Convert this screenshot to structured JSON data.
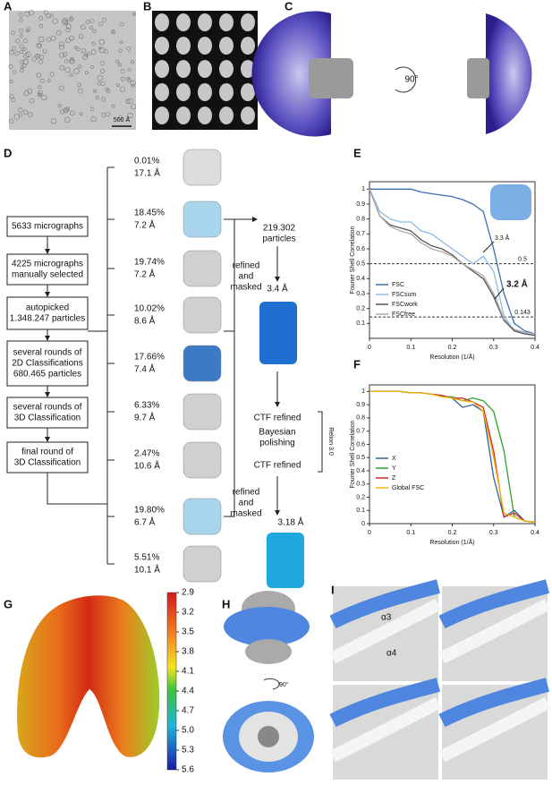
{
  "figure": {
    "panel_labels": [
      "A",
      "B",
      "C",
      "D",
      "E",
      "F",
      "G",
      "H",
      "I"
    ],
    "scale_bar": "500 Å",
    "rotation_c": "90°",
    "rotation_h": "90°",
    "steps": [
      [
        "5633 micrographs"
      ],
      [
        "4225 micrographs",
        "manually selected"
      ],
      [
        "autopicked",
        "1.348.247 particles"
      ],
      [
        "several rounds of",
        "2D Classifications",
        "680.465 particles"
      ],
      [
        "several rounds of",
        "3D Classification"
      ],
      [
        "final round of",
        "3D Classification"
      ]
    ],
    "classes": [
      {
        "percent": "0.01%",
        "resolution": "17.1 Å"
      },
      {
        "percent": "18.45%",
        "resolution": "7.2 Å"
      },
      {
        "percent": "19.74%",
        "resolution": "7.2 Å"
      },
      {
        "percent": "10.02%",
        "resolution": "8.6 Å"
      },
      {
        "percent": "17.66%",
        "resolution": "7.4 Å"
      },
      {
        "percent": "6.33%",
        "resolution": "9.7 Å"
      },
      {
        "percent": "2.47%",
        "resolution": "10.6 Å"
      },
      {
        "percent": "19.80%",
        "resolution": "6.7 Å"
      },
      {
        "percent": "5.51%",
        "resolution": "10.1 Å"
      }
    ],
    "particles": [
      "219.302",
      "particles"
    ],
    "refine_1": [
      "refined",
      "and",
      "masked"
    ],
    "resolution_1": "3.4 Å",
    "ctf_1": "CTF refined",
    "polishing": [
      "Bayesian",
      "polishing"
    ],
    "ctf_2": "CTF refined",
    "software": "Relion 3.0",
    "refine_2": [
      "refined",
      "and",
      "masked"
    ],
    "resolution_2": "3.18 Å",
    "colorbar": {
      "ticks": [
        2.9,
        3.2,
        3.5,
        3.8,
        4.1,
        4.4,
        4.7,
        {
          "value": 5.0,
          "label": "5.0"
        },
        5.3,
        5.6
      ]
    },
    "helices": [
      "α3",
      "α4"
    ]
  },
  "chart_data": [
    {
      "type": "line",
      "ylabel": "Fourier Shell Correlation",
      "xlabel": "Resolution (1/Å)",
      "x": [
        0,
        0.025,
        0.05,
        0.075,
        0.1,
        0.125,
        0.15,
        0.175,
        0.2,
        0.225,
        0.25,
        0.275,
        0.3,
        0.325,
        0.35,
        0.375,
        0.4
      ],
      "xlim": [
        0,
        0.4
      ],
      "ylim": [
        0,
        1.05
      ],
      "xticks": [
        0,
        0.1,
        0.2,
        0.3,
        0.4
      ],
      "yticks": [
        0.1,
        0.2,
        0.3,
        0.4,
        0.5,
        0.6,
        0.7,
        0.8,
        0.9,
        1
      ],
      "thresholds": [
        {
          "value": 0.5,
          "label": "0.5"
        },
        {
          "value": 0.143,
          "label": "0.143"
        }
      ],
      "annotations": [
        "3.3 Å",
        "3.2 Å"
      ],
      "series": [
        {
          "name": "FSC",
          "color": "#3b6fb6",
          "values": [
            1,
            1,
            1,
            1,
            1,
            0.98,
            0.97,
            0.96,
            0.95,
            0.93,
            0.9,
            0.85,
            0.6,
            0.3,
            0.1,
            0.05,
            0.03
          ]
        },
        {
          "name": "FSCsum",
          "color": "#8fbbe6",
          "values": [
            1,
            0.85,
            0.8,
            0.78,
            0.78,
            0.72,
            0.7,
            0.65,
            0.6,
            0.55,
            0.5,
            0.55,
            0.45,
            0.15,
            0.05,
            0.03,
            0.02
          ]
        },
        {
          "name": "FSCwork",
          "color": "#555555",
          "values": [
            1,
            0.82,
            0.76,
            0.74,
            0.72,
            0.66,
            0.62,
            0.6,
            0.56,
            0.5,
            0.45,
            0.4,
            0.28,
            0.12,
            0.05,
            0.03,
            0.02
          ]
        },
        {
          "name": "FSCfree",
          "color": "#aaaaaa",
          "values": [
            1,
            0.82,
            0.75,
            0.72,
            0.7,
            0.64,
            0.6,
            0.58,
            0.55,
            0.5,
            0.46,
            0.42,
            0.3,
            0.13,
            0.06,
            0.04,
            0.03
          ]
        }
      ]
    },
    {
      "type": "line",
      "ylabel": "Fourier Shell Correlation",
      "xlabel": "Resolution (1/Å)",
      "x": [
        0,
        0.025,
        0.05,
        0.075,
        0.1,
        0.125,
        0.15,
        0.175,
        0.2,
        0.225,
        0.25,
        0.275,
        0.3,
        0.325,
        0.35,
        0.375,
        0.4
      ],
      "xlim": [
        0,
        0.4
      ],
      "ylim": [
        0,
        1.05
      ],
      "xticks": [
        0,
        0.1,
        0.2,
        0.3,
        0.4
      ],
      "yticks": [
        0,
        0.1,
        0.2,
        0.3,
        0.4,
        0.5,
        0.6,
        0.7,
        0.8,
        0.9,
        1
      ],
      "series": [
        {
          "name": "X",
          "color": "#2f5f9e",
          "values": [
            1,
            1,
            1,
            1,
            0.99,
            0.99,
            0.98,
            0.97,
            0.95,
            0.88,
            0.9,
            0.85,
            0.35,
            0.05,
            0.1,
            0.02,
            0.01
          ]
        },
        {
          "name": "Y",
          "color": "#2ca02c",
          "values": [
            1,
            1,
            1,
            1,
            0.99,
            0.99,
            0.98,
            0.96,
            0.96,
            0.93,
            0.95,
            0.93,
            0.85,
            0.55,
            0.05,
            0.02,
            0.01
          ]
        },
        {
          "name": "Z",
          "color": "#d62728",
          "values": [
            1,
            1,
            1,
            1,
            0.99,
            0.99,
            0.98,
            0.97,
            0.95,
            0.95,
            0.92,
            0.88,
            0.55,
            0.05,
            0.08,
            0.02,
            0.01
          ]
        },
        {
          "name": "Global FSC",
          "color": "#f2b705",
          "values": [
            1,
            1,
            1,
            1,
            0.99,
            0.99,
            0.98,
            0.96,
            0.95,
            0.93,
            0.92,
            0.85,
            0.5,
            0.08,
            0.05,
            0.02,
            0.01
          ]
        }
      ]
    }
  ]
}
